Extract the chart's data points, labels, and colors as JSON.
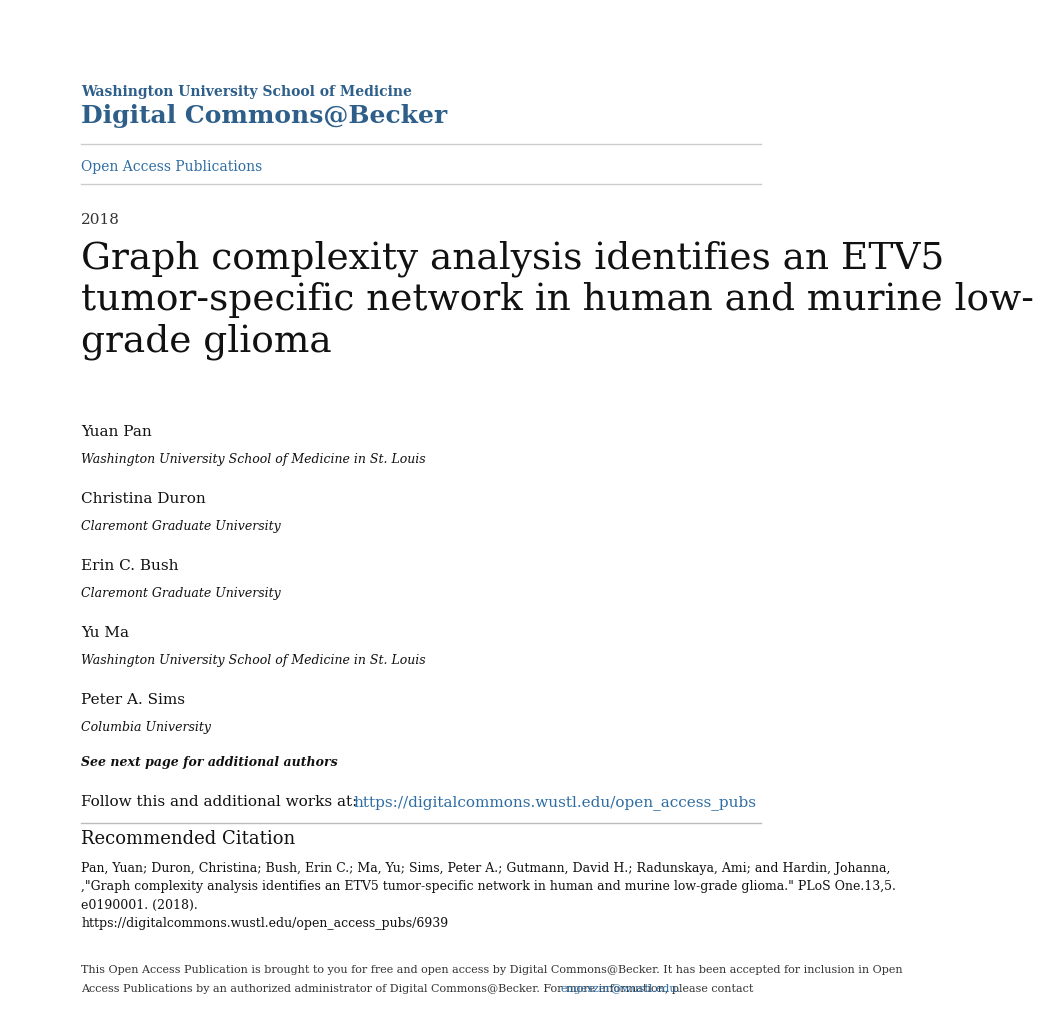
{
  "bg_color": "#ffffff",
  "header_line1": "Washington University School of Medicine",
  "header_line2": "Digital Commons@Becker",
  "header_color": "#2e5f8a",
  "nav_link": "Open Access Publications",
  "nav_link_color": "#2e6da4",
  "year": "2018",
  "year_color": "#333333",
  "title": "Graph complexity analysis identifies an ETV5\ntumor-specific network in human and murine low-\ngrade glioma",
  "title_color": "#111111",
  "authors": [
    {
      "name": "Yuan Pan",
      "affil": "Washington University School of Medicine in St. Louis"
    },
    {
      "name": "Christina Duron",
      "affil": "Claremont Graduate University"
    },
    {
      "name": "Erin C. Bush",
      "affil": "Claremont Graduate University"
    },
    {
      "name": "Yu Ma",
      "affil": "Washington University School of Medicine in St. Louis"
    },
    {
      "name": "Peter A. Sims",
      "affil": "Columbia University"
    }
  ],
  "see_next": "See next page for additional authors",
  "follow_text": "Follow this and additional works at: ",
  "follow_link": "https://digitalcommons.wustl.edu/open_access_pubs",
  "link_color": "#2e6da4",
  "rec_citation_title": "Recommended Citation",
  "rec_citation_body": "Pan, Yuan; Duron, Christina; Bush, Erin C.; Ma, Yu; Sims, Peter A.; Gutmann, David H.; Radunskaya, Ami; and Hardin, Johanna,\n,\"Graph complexity analysis identifies an ETV5 tumor-specific network in human and murine low-grade glioma.\" PLoS One.13,5.\ne0190001. (2018).\nhttps://digitalcommons.wustl.edu/open_access_pubs/6939",
  "footer_line1": "This Open Access Publication is brought to you for free and open access by Digital Commons@Becker. It has been accepted for inclusion in Open",
  "footer_line2_before_link": "Access Publications by an authorized administrator of Digital Commons@Becker. For more information, please contact ",
  "footer_link": "engeszer@wustl.edu.",
  "footer_color": "#333333"
}
